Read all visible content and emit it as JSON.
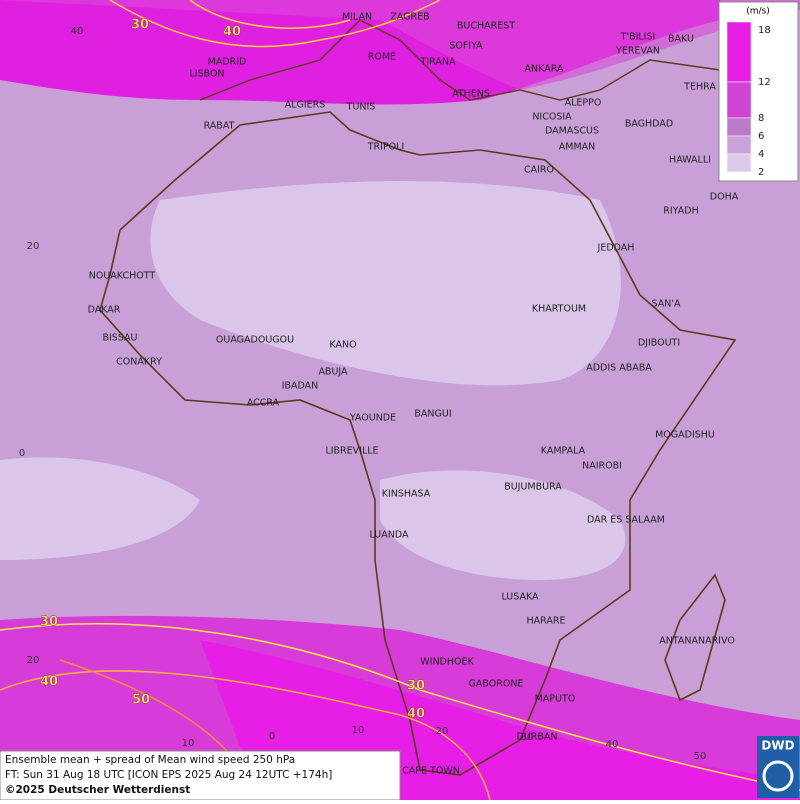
{
  "map": {
    "cities": [
      "MILAN",
      "ZAGREB",
      "BUCHAREST",
      "T'BILISI",
      "BAKU",
      "SOFIYA",
      "YEREVAN",
      "ROME",
      "TIRANA",
      "MADRID",
      "LISBON",
      "ANKARA",
      "TEHRA",
      "ATHENS",
      "ALGIERS",
      "TUNIS",
      "ALEPPO",
      "RABAT",
      "NICOSIA",
      "BAGHDAD",
      "DAMASCUS",
      "AMMAN",
      "TRIPOLI",
      "HAWALLI",
      "CAIRO",
      "DOHA",
      "RIYADH",
      "NOUAKCHOTT",
      "JEDDAH",
      "DAKAR",
      "SAN'A",
      "KHARTOUM",
      "BISSAU",
      "OUAGADOUGOU",
      "KANO",
      "DJIBOUTI",
      "CONAKRY",
      "ABUJA",
      "ADDIS ABABA",
      "IBADAN",
      "ACCRA",
      "YAOUNDE",
      "BANGUI",
      "MOGADISHU",
      "LIBREVILLE",
      "KAMPALA",
      "NAIROBI",
      "KINSHASA",
      "BUJUMBURA",
      "DAR ES SALAAM",
      "LUANDA",
      "LUSAKA",
      "HARARE",
      "ANTANANARIVO",
      "WINDHOEK",
      "GABORONE",
      "MAPUTO",
      "DURBAN",
      "CAPE TOWN"
    ],
    "contour_labels": [
      30,
      40,
      30,
      40,
      50,
      30,
      40
    ],
    "latitude_labels": [
      40,
      20,
      0,
      20
    ],
    "longitude_labels": [
      10,
      0,
      10,
      20,
      30,
      40,
      50
    ]
  },
  "legend": {
    "unit": "(m/s)",
    "levels": [
      18,
      12,
      8,
      6,
      4,
      2
    ],
    "colors": [
      "#e61ee6",
      "#cf45d2",
      "#b97bc9",
      "#c9a3da",
      "#ddc9ea"
    ]
  },
  "footer": {
    "lines": [
      "Ensemble mean + spread of Mean wind speed 250 hPa",
      "FT: Sun 31 Aug 18 UTC [ICON EPS 2025 Aug 24 12UTC +174h]",
      "©2025 Deutscher Wetterdienst"
    ]
  },
  "logo": "DWD"
}
